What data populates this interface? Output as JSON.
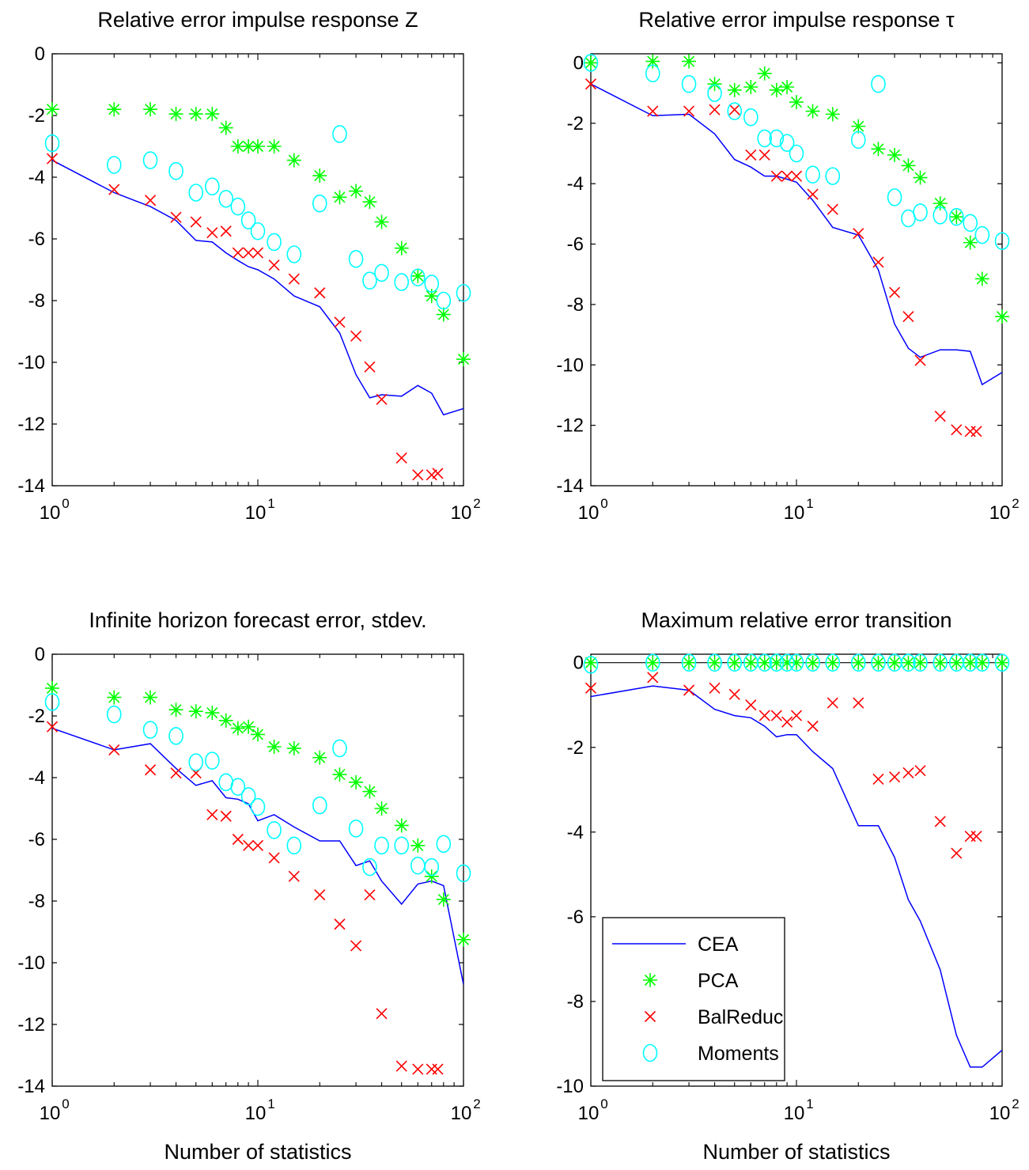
{
  "colors": {
    "CEA": "#0000ff",
    "PCA": "#00ff00",
    "BalReduc": "#ff0000",
    "Moments": "#00ffff"
  },
  "chart_data": [
    {
      "type": "line",
      "title": "Relative error impulse response Z",
      "xlabel": "",
      "xscale": "log",
      "xlim": [
        1,
        100
      ],
      "ylim": [
        -14,
        0
      ],
      "x_ticks": [
        {
          "base": "10",
          "exp": "0"
        },
        {
          "base": "10",
          "exp": "1"
        },
        {
          "base": "10",
          "exp": "2"
        }
      ],
      "y_ticks": [
        "0",
        "-2",
        "-4",
        "-6",
        "-8",
        "-10",
        "-12",
        "-14"
      ],
      "y_tick_values": [
        0,
        -2,
        -4,
        -6,
        -8,
        -10,
        -12,
        -14
      ],
      "zero_line": false,
      "series": [
        {
          "name": "CEA",
          "marker": "line",
          "x": [
            1,
            2,
            3,
            4,
            5,
            6,
            7,
            8,
            9,
            10,
            12,
            15,
            20,
            25,
            30,
            35,
            40,
            50,
            60,
            70,
            80,
            100
          ],
          "y": [
            -3.45,
            -4.5,
            -4.95,
            -5.4,
            -6.05,
            -6.1,
            -6.45,
            -6.7,
            -6.9,
            -7.0,
            -7.3,
            -7.85,
            -8.2,
            -9.05,
            -10.4,
            -11.15,
            -11.05,
            -11.1,
            -10.75,
            -11.0,
            -11.7,
            -11.5
          ]
        },
        {
          "name": "PCA",
          "marker": "star",
          "x": [
            1,
            2,
            3,
            4,
            5,
            6,
            7,
            8,
            9,
            10,
            12,
            15,
            20,
            25,
            30,
            35,
            40,
            50,
            60,
            70,
            80,
            100
          ],
          "y": [
            -1.8,
            -1.8,
            -1.8,
            -1.95,
            -1.95,
            -1.95,
            -2.4,
            -3.0,
            -3.0,
            -3.0,
            -3.0,
            -3.45,
            -3.95,
            -4.65,
            -4.45,
            -4.8,
            -5.45,
            -6.3,
            -7.2,
            -7.85,
            -8.45,
            -9.9
          ]
        },
        {
          "name": "BalReduc",
          "marker": "x",
          "x": [
            1,
            2,
            3,
            4,
            5,
            6,
            7,
            8,
            9,
            10,
            12,
            15,
            20,
            25,
            30,
            35,
            40,
            50,
            60,
            70,
            75
          ],
          "y": [
            -3.4,
            -4.4,
            -4.75,
            -5.3,
            -5.45,
            -5.8,
            -5.75,
            -6.45,
            -6.45,
            -6.45,
            -6.85,
            -7.3,
            -7.75,
            -8.7,
            -9.15,
            -10.15,
            -11.2,
            -13.1,
            -13.65,
            -13.65,
            -13.6
          ]
        },
        {
          "name": "Moments",
          "marker": "circle",
          "x": [
            1,
            2,
            3,
            4,
            5,
            6,
            7,
            8,
            9,
            10,
            12,
            15,
            20,
            25,
            30,
            35,
            40,
            50,
            60,
            70,
            80,
            100
          ],
          "y": [
            -2.9,
            -3.6,
            -3.45,
            -3.8,
            -4.5,
            -4.3,
            -4.7,
            -4.95,
            -5.4,
            -5.75,
            -6.1,
            -6.5,
            -4.85,
            -2.6,
            -6.65,
            -7.35,
            -7.1,
            -7.4,
            -7.25,
            -7.45,
            -8.0,
            -7.75
          ]
        }
      ]
    },
    {
      "type": "line",
      "title": "Relative error impulse response τ",
      "xlabel": "",
      "xscale": "log",
      "xlim": [
        1,
        100
      ],
      "ylim": [
        -14,
        0.3
      ],
      "x_ticks": [
        {
          "base": "10",
          "exp": "0"
        },
        {
          "base": "10",
          "exp": "1"
        },
        {
          "base": "10",
          "exp": "2"
        }
      ],
      "y_ticks": [
        "0",
        "-2",
        "-4",
        "-6",
        "-8",
        "-10",
        "-12",
        "-14"
      ],
      "y_tick_values": [
        0,
        -2,
        -4,
        -6,
        -8,
        -10,
        -12,
        -14
      ],
      "zero_line": false,
      "series": [
        {
          "name": "CEA",
          "marker": "line",
          "x": [
            1,
            2,
            3,
            4,
            5,
            6,
            7,
            8,
            9,
            10,
            12,
            15,
            20,
            25,
            30,
            35,
            40,
            50,
            60,
            70,
            80,
            100
          ],
          "y": [
            -0.7,
            -1.75,
            -1.7,
            -2.35,
            -3.2,
            -3.45,
            -3.75,
            -3.75,
            -3.85,
            -3.95,
            -4.55,
            -5.45,
            -5.7,
            -6.85,
            -8.65,
            -9.45,
            -9.75,
            -9.5,
            -9.5,
            -9.55,
            -10.65,
            -10.25
          ]
        },
        {
          "name": "PCA",
          "marker": "star",
          "x": [
            1,
            2,
            3,
            4,
            5,
            6,
            7,
            8,
            9,
            10,
            12,
            15,
            20,
            25,
            30,
            35,
            40,
            50,
            60,
            70,
            80,
            100
          ],
          "y": [
            0.0,
            0.05,
            0.05,
            -0.7,
            -0.9,
            -0.8,
            -0.35,
            -0.9,
            -0.8,
            -1.3,
            -1.6,
            -1.7,
            -2.1,
            -2.85,
            -3.05,
            -3.4,
            -3.8,
            -4.65,
            -5.1,
            -5.95,
            -7.15,
            -8.4
          ]
        },
        {
          "name": "BalReduc",
          "marker": "x",
          "x": [
            1,
            2,
            3,
            4,
            5,
            6,
            7,
            8,
            9,
            10,
            12,
            15,
            20,
            25,
            30,
            35,
            40,
            50,
            60,
            70,
            75
          ],
          "y": [
            -0.7,
            -1.6,
            -1.6,
            -1.55,
            -1.55,
            -3.05,
            -3.05,
            -3.75,
            -3.75,
            -3.75,
            -4.35,
            -4.85,
            -5.65,
            -6.6,
            -7.6,
            -8.4,
            -9.85,
            -11.7,
            -12.15,
            -12.2,
            -12.2
          ]
        },
        {
          "name": "Moments",
          "marker": "circle",
          "x": [
            1,
            2,
            3,
            4,
            5,
            6,
            7,
            8,
            9,
            10,
            12,
            15,
            20,
            25,
            30,
            35,
            40,
            50,
            60,
            70,
            80,
            100
          ],
          "y": [
            0.0,
            -0.35,
            -0.7,
            -1.0,
            -1.6,
            -1.8,
            -2.5,
            -2.5,
            -2.65,
            -3.0,
            -3.7,
            -3.75,
            -2.55,
            -0.7,
            -4.45,
            -5.15,
            -4.95,
            -5.05,
            -5.1,
            -5.3,
            -5.7,
            -5.9
          ]
        }
      ]
    },
    {
      "type": "line",
      "title": "Infinite horizon forecast error, stdev.",
      "xlabel": "Number of statistics",
      "xscale": "log",
      "xlim": [
        1,
        100
      ],
      "ylim": [
        -14,
        0
      ],
      "x_ticks": [
        {
          "base": "10",
          "exp": "0"
        },
        {
          "base": "10",
          "exp": "1"
        },
        {
          "base": "10",
          "exp": "2"
        }
      ],
      "y_ticks": [
        "0",
        "-2",
        "-4",
        "-6",
        "-8",
        "-10",
        "-12",
        "-14"
      ],
      "y_tick_values": [
        0,
        -2,
        -4,
        -6,
        -8,
        -10,
        -12,
        -14
      ],
      "zero_line": false,
      "series": [
        {
          "name": "CEA",
          "marker": "line",
          "x": [
            1,
            2,
            3,
            4,
            5,
            6,
            7,
            8,
            9,
            10,
            12,
            15,
            20,
            25,
            30,
            35,
            40,
            50,
            60,
            70,
            80,
            100
          ],
          "y": [
            -2.4,
            -3.1,
            -2.9,
            -3.7,
            -4.25,
            -4.1,
            -4.65,
            -4.7,
            -4.85,
            -5.4,
            -5.2,
            -5.6,
            -6.05,
            -6.05,
            -6.85,
            -6.7,
            -7.35,
            -8.1,
            -7.45,
            -7.35,
            -7.5,
            -10.7
          ]
        },
        {
          "name": "PCA",
          "marker": "star",
          "x": [
            1,
            2,
            3,
            4,
            5,
            6,
            7,
            8,
            9,
            10,
            12,
            15,
            20,
            25,
            30,
            35,
            40,
            50,
            60,
            70,
            80,
            100
          ],
          "y": [
            -1.1,
            -1.4,
            -1.4,
            -1.8,
            -1.85,
            -1.9,
            -2.15,
            -2.4,
            -2.35,
            -2.6,
            -3.0,
            -3.05,
            -3.35,
            -3.9,
            -4.15,
            -4.45,
            -5.0,
            -5.55,
            -6.2,
            -7.2,
            -7.95,
            -9.25
          ]
        },
        {
          "name": "BalReduc",
          "marker": "x",
          "x": [
            1,
            2,
            3,
            4,
            5,
            6,
            7,
            8,
            9,
            10,
            12,
            15,
            20,
            25,
            30,
            35,
            40,
            50,
            60,
            70,
            75
          ],
          "y": [
            -2.35,
            -3.1,
            -3.75,
            -3.85,
            -3.85,
            -5.2,
            -5.25,
            -6.0,
            -6.2,
            -6.2,
            -6.6,
            -7.2,
            -7.8,
            -8.75,
            -9.45,
            -7.8,
            -11.65,
            -13.35,
            -13.45,
            -13.45,
            -13.45
          ]
        },
        {
          "name": "Moments",
          "marker": "circle",
          "x": [
            1,
            2,
            3,
            4,
            5,
            6,
            7,
            8,
            9,
            10,
            12,
            15,
            20,
            25,
            30,
            35,
            40,
            50,
            60,
            70,
            80,
            100
          ],
          "y": [
            -1.55,
            -1.95,
            -2.45,
            -2.65,
            -3.5,
            -3.45,
            -4.15,
            -4.3,
            -4.6,
            -4.95,
            -5.7,
            -6.2,
            -4.9,
            -3.05,
            -5.65,
            -6.9,
            -6.2,
            -6.2,
            -6.85,
            -6.9,
            -6.15,
            -7.1
          ]
        }
      ]
    },
    {
      "type": "line",
      "title": "Maximum relative error transition",
      "xlabel": "Number of statistics",
      "xscale": "log",
      "xlim": [
        1,
        100
      ],
      "ylim": [
        -10,
        0.2
      ],
      "x_ticks": [
        {
          "base": "10",
          "exp": "0"
        },
        {
          "base": "10",
          "exp": "1"
        },
        {
          "base": "10",
          "exp": "2"
        }
      ],
      "y_ticks": [
        "0",
        "-2",
        "-4",
        "-6",
        "-8",
        "-10"
      ],
      "y_tick_values": [
        0,
        -2,
        -4,
        -6,
        -8,
        -10
      ],
      "zero_line": true,
      "legend": {
        "position": "bottom-left",
        "entries": [
          "CEA",
          "PCA",
          "BalReduc",
          "Moments"
        ]
      },
      "series": [
        {
          "name": "CEA",
          "marker": "line",
          "x": [
            1,
            2,
            3,
            4,
            5,
            6,
            7,
            8,
            9,
            10,
            12,
            15,
            20,
            25,
            30,
            35,
            40,
            50,
            60,
            70,
            80,
            100
          ],
          "y": [
            -0.8,
            -0.55,
            -0.65,
            -1.1,
            -1.25,
            -1.3,
            -1.5,
            -1.75,
            -1.7,
            -1.7,
            -2.1,
            -2.5,
            -3.85,
            -3.85,
            -4.6,
            -5.6,
            -6.1,
            -7.25,
            -8.8,
            -9.55,
            -9.55,
            -9.15
          ]
        },
        {
          "name": "PCA",
          "marker": "star",
          "x": [
            1,
            2,
            3,
            4,
            5,
            6,
            7,
            8,
            9,
            10,
            12,
            15,
            20,
            25,
            30,
            35,
            40,
            50,
            60,
            70,
            80,
            100
          ],
          "y": [
            0,
            0,
            0,
            0,
            0,
            0,
            0,
            0,
            0,
            0,
            0,
            0,
            0,
            0,
            0,
            0,
            0,
            0,
            0,
            0,
            0,
            0
          ]
        },
        {
          "name": "BalReduc",
          "marker": "x",
          "x": [
            1,
            2,
            3,
            4,
            5,
            6,
            7,
            8,
            9,
            10,
            12,
            15,
            20,
            25,
            30,
            35,
            40,
            50,
            60,
            70,
            75
          ],
          "y": [
            -0.6,
            -0.35,
            -0.65,
            -0.6,
            -0.75,
            -1.0,
            -1.25,
            -1.25,
            -1.4,
            -1.25,
            -1.5,
            -0.95,
            -0.95,
            -2.75,
            -2.7,
            -2.6,
            -2.55,
            -3.75,
            -4.5,
            -4.1,
            -4.1
          ]
        },
        {
          "name": "Moments",
          "marker": "circle",
          "x": [
            1,
            2,
            3,
            4,
            5,
            6,
            7,
            8,
            9,
            10,
            12,
            15,
            20,
            25,
            30,
            35,
            40,
            50,
            60,
            70,
            80,
            100
          ],
          "y": [
            -0.05,
            0,
            0,
            0,
            0,
            0,
            0,
            0,
            0,
            0,
            0,
            0,
            0,
            0,
            0,
            0,
            0,
            0,
            0,
            0,
            0,
            0
          ]
        }
      ]
    }
  ]
}
